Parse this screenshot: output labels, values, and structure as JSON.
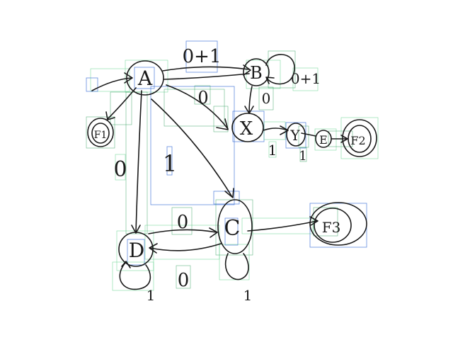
{
  "states": {
    "A": "A",
    "B": "B",
    "X": "X",
    "Y": "Y",
    "E": "E",
    "C": "C",
    "D": "D",
    "F1": "F1",
    "F2": "F2",
    "F3": "F3"
  },
  "edge_labels": {
    "a_to_b": "0+1",
    "a_to_x": "0",
    "a_to_c": "1",
    "a_to_d": "0",
    "b_self": "0+1",
    "b_to_x": "0",
    "x_to_y": "1",
    "y_to_e": "1",
    "d_to_c": "0",
    "c_to_d": "0",
    "d_self": "1",
    "c_self": "1"
  }
}
